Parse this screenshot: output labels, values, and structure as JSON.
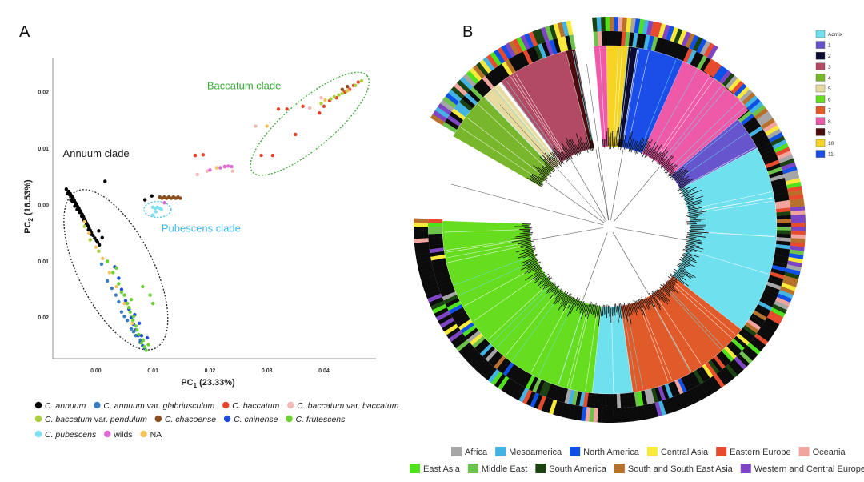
{
  "panel_a_label": "A",
  "panel_b_label": "B",
  "chart_data": [
    {
      "type": "scatter",
      "title": "",
      "xlabel_main": "PC",
      "xlabel_sub": "1",
      "xlabel_rest": " (23.33%)",
      "ylabel_main": "PC",
      "ylabel_sub": "2",
      "ylabel_rest": " (16.53%)",
      "xlim": [
        -0.007,
        0.048
      ],
      "ylim": [
        -0.027,
        0.025
      ],
      "x_ticks": [
        {
          "value": 0.0,
          "label": "0.00"
        },
        {
          "value": 0.01,
          "label": "0.01"
        },
        {
          "value": 0.02,
          "label": "0.02"
        },
        {
          "value": 0.03,
          "label": "0.03"
        },
        {
          "value": 0.04,
          "label": "0.04"
        }
      ],
      "y_ticks": [
        {
          "value": 0.02,
          "label": "0.02"
        },
        {
          "value": 0.01,
          "label": "0.01"
        },
        {
          "value": 0.0,
          "label": "0.00"
        },
        {
          "value": -0.01,
          "label": "0.01"
        },
        {
          "value": -0.02,
          "label": "0.02"
        }
      ],
      "grid": false,
      "clades": [
        {
          "name": "Annuum clade",
          "color": "#222222",
          "cx": 0.0035,
          "cy": -0.0115,
          "rx": 0.0155,
          "ry": 0.0066,
          "angle": 63,
          "label_x": -0.0058,
          "label_y": 0.0085
        },
        {
          "name": "Pubescens clade",
          "color": "#3bb9e8",
          "cx": 0.0108,
          "cy": -0.0008,
          "rx": 0.0024,
          "ry": 0.0014,
          "angle": 0,
          "label_x": 0.0115,
          "label_y": -0.0048
        },
        {
          "name": "Baccatum clade",
          "color": "#3aaa35",
          "cx": 0.0375,
          "cy": 0.0144,
          "rx": 0.0132,
          "ry": 0.0042,
          "angle": -40,
          "label_x": 0.0195,
          "label_y": 0.0205
        }
      ],
      "series": [
        {
          "name": "C. annuum",
          "color": "#000000",
          "points": [
            [
              -0.0052,
              0.0028
            ],
            [
              -0.0048,
              0.0024
            ],
            [
              -0.0045,
              0.002
            ],
            [
              -0.0042,
              0.0015
            ],
            [
              -0.004,
              0.0012
            ],
            [
              -0.0038,
              0.0008
            ],
            [
              -0.0036,
              0.0004
            ],
            [
              -0.0034,
              0.0001
            ],
            [
              -0.0032,
              -0.0003
            ],
            [
              -0.003,
              -0.0006
            ],
            [
              -0.0028,
              -0.001
            ],
            [
              -0.0026,
              -0.0014
            ],
            [
              -0.0024,
              -0.0017
            ],
            [
              -0.0022,
              -0.0021
            ],
            [
              -0.002,
              -0.0025
            ],
            [
              -0.0018,
              -0.0029
            ],
            [
              -0.0016,
              -0.0033
            ],
            [
              -0.0014,
              -0.0037
            ],
            [
              -0.0012,
              -0.0041
            ],
            [
              -0.001,
              -0.0045
            ],
            [
              -0.0008,
              -0.0049
            ],
            [
              -0.0005,
              -0.0054
            ],
            [
              -0.0002,
              -0.0059
            ],
            [
              0.0001,
              -0.0063
            ],
            [
              0.0003,
              -0.0066
            ],
            [
              0.0006,
              -0.0071
            ],
            [
              -0.005,
              0.002
            ],
            [
              -0.0046,
              0.0018
            ],
            [
              -0.0044,
              0.0009
            ],
            [
              -0.0041,
              0.0006
            ],
            [
              -0.0037,
              -0.0002
            ],
            [
              -0.0033,
              -0.0008
            ],
            [
              -0.0029,
              -0.0013
            ],
            [
              -0.0025,
              -0.002
            ],
            [
              -0.0021,
              -0.0027
            ],
            [
              -0.0017,
              -0.0035
            ],
            [
              -0.0013,
              -0.0044
            ],
            [
              -0.0009,
              -0.0052
            ],
            [
              0.0016,
              0.0042
            ],
            [
              0.0098,
              0.0016
            ],
            [
              0.0086,
              0.0009
            ],
            [
              0.0174,
              0.0088
            ],
            [
              0.0005,
              -0.0046
            ],
            [
              0.0011,
              -0.0058
            ]
          ]
        },
        {
          "name": "C. annuum var. glabriusculum",
          "color": "#3a7ec1",
          "points": [
            [
              0.001,
              -0.0105
            ],
            [
              0.002,
              -0.0135
            ],
            [
              0.0035,
              -0.016
            ],
            [
              0.0045,
              -0.019
            ],
            [
              0.0055,
              -0.0205
            ],
            [
              0.0062,
              -0.022
            ],
            [
              0.007,
              -0.0232
            ],
            [
              0.0078,
              -0.024
            ],
            [
              0.0028,
              -0.0148
            ],
            [
              0.005,
              -0.0198
            ],
            [
              0.0066,
              -0.0225
            ],
            [
              0.004,
              -0.0172
            ]
          ]
        },
        {
          "name": "C. baccatum",
          "color": "#e8432a",
          "points": [
            [
              0.0335,
              0.017
            ],
            [
              0.0363,
              0.0175
            ],
            [
              0.0392,
              0.0163
            ],
            [
              0.041,
              0.0185
            ],
            [
              0.0422,
              0.019
            ],
            [
              0.0436,
              0.02
            ],
            [
              0.0445,
              0.0205
            ],
            [
              0.0452,
              0.0212
            ],
            [
              0.046,
              0.0218
            ],
            [
              0.04,
              0.0175
            ],
            [
              0.0188,
              0.0089
            ],
            [
              0.0174,
              0.0088
            ],
            [
              0.0226,
              0.0068
            ],
            [
              0.031,
              0.0088
            ],
            [
              0.035,
              0.0125
            ],
            [
              0.032,
              0.017
            ],
            [
              0.029,
              0.0088
            ]
          ]
        },
        {
          "name": "C. baccatum var. baccatum",
          "color": "#f4b8b6",
          "points": [
            [
              0.0178,
              0.0054
            ],
            [
              0.0195,
              0.006
            ],
            [
              0.024,
              0.006
            ],
            [
              0.0375,
              0.0172
            ],
            [
              0.0395,
              0.019
            ],
            [
              0.028,
              0.014
            ]
          ]
        },
        {
          "name": "C. baccatum var. pendulum",
          "color": "#a9cf3a",
          "points": [
            [
              0.0395,
              0.018
            ],
            [
              0.0412,
              0.0188
            ],
            [
              0.0426,
              0.0195
            ],
            [
              0.044,
              0.0202
            ],
            [
              0.0455,
              0.0212
            ],
            [
              0.0466,
              0.022
            ],
            [
              0.0418,
              0.0192
            ],
            [
              0.0432,
              0.0198
            ],
            [
              -0.002,
              -0.0038
            ],
            [
              -0.001,
              -0.0062
            ],
            [
              0.0005,
              -0.0082
            ]
          ]
        },
        {
          "name": "C. chacoense",
          "color": "#8b4d1e",
          "points": [
            [
              0.0112,
              0.0014
            ],
            [
              0.0116,
              0.0012
            ],
            [
              0.012,
              0.0014
            ],
            [
              0.0124,
              0.0012
            ],
            [
              0.0128,
              0.0014
            ],
            [
              0.0132,
              0.0012
            ],
            [
              0.0136,
              0.0014
            ],
            [
              0.014,
              0.0012
            ],
            [
              0.0144,
              0.0014
            ],
            [
              0.0148,
              0.0012
            ],
            [
              0.0432,
              0.0205
            ],
            [
              0.0441,
              0.021
            ]
          ]
        },
        {
          "name": "C. chinense",
          "color": "#1f4fd6",
          "points": [
            [
              0.0045,
              -0.015
            ],
            [
              0.0052,
              -0.017
            ],
            [
              0.0058,
              -0.0185
            ],
            [
              0.0062,
              -0.02
            ],
            [
              0.0066,
              -0.0212
            ],
            [
              0.007,
              -0.0222
            ],
            [
              0.0074,
              -0.0232
            ],
            [
              0.0078,
              -0.0244
            ],
            [
              0.0082,
              -0.025
            ],
            [
              0.0086,
              -0.0255
            ],
            [
              0.004,
              -0.013
            ],
            [
              0.0068,
              -0.0195
            ],
            [
              0.008,
              -0.0232
            ],
            [
              0.009,
              -0.0236
            ],
            [
              0.0033,
              -0.011
            ],
            [
              0.0076,
              -0.021
            ]
          ]
        },
        {
          "name": "C. frutescens",
          "color": "#6cd233",
          "points": [
            [
              0.003,
              -0.012
            ],
            [
              0.004,
              -0.014
            ],
            [
              0.005,
              -0.016
            ],
            [
              0.0055,
              -0.0175
            ],
            [
              0.006,
              -0.019
            ],
            [
              0.0065,
              -0.0205
            ],
            [
              0.007,
              -0.0215
            ],
            [
              0.0075,
              -0.023
            ],
            [
              0.008,
              -0.0245
            ],
            [
              0.0085,
              -0.0252
            ],
            [
              0.0088,
              -0.0258
            ],
            [
              0.002,
              -0.01
            ],
            [
              0.0045,
              -0.0155
            ],
            [
              0.0058,
              -0.0182
            ],
            [
              0.0072,
              -0.0222
            ],
            [
              0.0083,
              -0.024
            ],
            [
              0.0062,
              -0.0168
            ],
            [
              0.0092,
              -0.0248
            ],
            [
              0.0036,
              -0.0112
            ],
            [
              0.0066,
              -0.0198
            ],
            [
              0.01,
              -0.0175
            ],
            [
              0.0095,
              -0.016
            ],
            [
              0.0082,
              -0.0145
            ]
          ]
        },
        {
          "name": "C. pubescens",
          "color": "#7ee0f0",
          "points": [
            [
              0.01,
              -0.0004
            ],
            [
              0.0104,
              -0.0006
            ],
            [
              0.0108,
              -0.0004
            ],
            [
              0.0112,
              -0.0006
            ],
            [
              0.0105,
              -0.0012
            ],
            [
              0.01,
              -0.0018
            ],
            [
              0.0115,
              -0.0008
            ]
          ]
        },
        {
          "name": "wilds",
          "color": "#e06ad6",
          "points": [
            [
              0.0218,
              0.0066
            ],
            [
              0.0226,
              0.0068
            ],
            [
              0.0232,
              0.0069
            ],
            [
              0.0238,
              0.0068
            ],
            [
              0.012,
              0.0004
            ],
            [
              0.02,
              0.0062
            ]
          ]
        },
        {
          "name": "NA",
          "color": "#f5c35c",
          "points": [
            [
              -0.002,
              -0.003
            ],
            [
              -0.0012,
              -0.005
            ],
            [
              0.0,
              -0.0075
            ],
            [
              0.0012,
              -0.0095
            ],
            [
              0.0024,
              -0.012
            ],
            [
              0.0036,
              -0.0145
            ],
            [
              0.005,
              -0.0175
            ],
            [
              0.0064,
              -0.021
            ],
            [
              0.0212,
              0.0066
            ],
            [
              0.0442,
              0.0203
            ],
            [
              0.03,
              0.014
            ],
            [
              0.0402,
              0.0186
            ]
          ]
        }
      ]
    },
    {
      "type": "circular-tree",
      "title": "",
      "cluster_legend": [
        {
          "label": "Admix",
          "color": "#6fe0ee"
        },
        {
          "label": "1",
          "color": "#6655cc"
        },
        {
          "label": "2",
          "color": "#0b0b33"
        },
        {
          "label": "3",
          "color": "#b24a63"
        },
        {
          "label": "4",
          "color": "#78b72c"
        },
        {
          "label": "5",
          "color": "#e7dba0"
        },
        {
          "label": "6",
          "color": "#66dd1e"
        },
        {
          "label": "7",
          "color": "#e05a2a"
        },
        {
          "label": "8",
          "color": "#ee5aa8"
        },
        {
          "label": "9",
          "color": "#4a0c0c"
        },
        {
          "label": "10",
          "color": "#f5d422"
        },
        {
          "label": "11",
          "color": "#1b4ee8"
        }
      ],
      "geo_legend": [
        {
          "label": "Africa",
          "color": "#a6a6a6"
        },
        {
          "label": "Mesoamerica",
          "color": "#43b3e4"
        },
        {
          "label": "North America",
          "color": "#0f50e6"
        },
        {
          "label": "Central Asia",
          "color": "#f9e93a"
        },
        {
          "label": "Eastern Europe",
          "color": "#e74a2c"
        },
        {
          "label": "Oceania",
          "color": "#f2a49f"
        },
        {
          "label": "East Asia",
          "color": "#4fe11c"
        },
        {
          "label": "Middle East",
          "color": "#6cc24a"
        },
        {
          "label": "South America",
          "color": "#1b4312"
        },
        {
          "label": "South and South East Asia",
          "color": "#b8712a"
        },
        {
          "label": "Western and Central Europe",
          "color": "#7d45c4"
        }
      ],
      "sectors": [
        {
          "cluster": "8",
          "start": 355,
          "end": 50
        },
        {
          "cluster": "1",
          "start": 50,
          "end": 62
        },
        {
          "cluster": "Admix",
          "start": 62,
          "end": 128
        },
        {
          "cluster": "7",
          "start": 128,
          "end": 172
        },
        {
          "cluster": "Admix",
          "start": 172,
          "end": 186
        },
        {
          "cluster": "6",
          "start": 186,
          "end": 272
        },
        {
          "cluster": "4",
          "start": 300,
          "end": 316
        },
        {
          "cluster": "5",
          "start": 316,
          "end": 322
        },
        {
          "cluster": "3",
          "start": 323,
          "end": 346
        },
        {
          "cluster": "9",
          "start": 346,
          "end": 349
        },
        {
          "cluster": "10",
          "start": 359,
          "end": 6
        },
        {
          "cluster": "2",
          "start": 6,
          "end": 9
        },
        {
          "cluster": "11",
          "start": 9,
          "end": 24
        }
      ]
    }
  ]
}
